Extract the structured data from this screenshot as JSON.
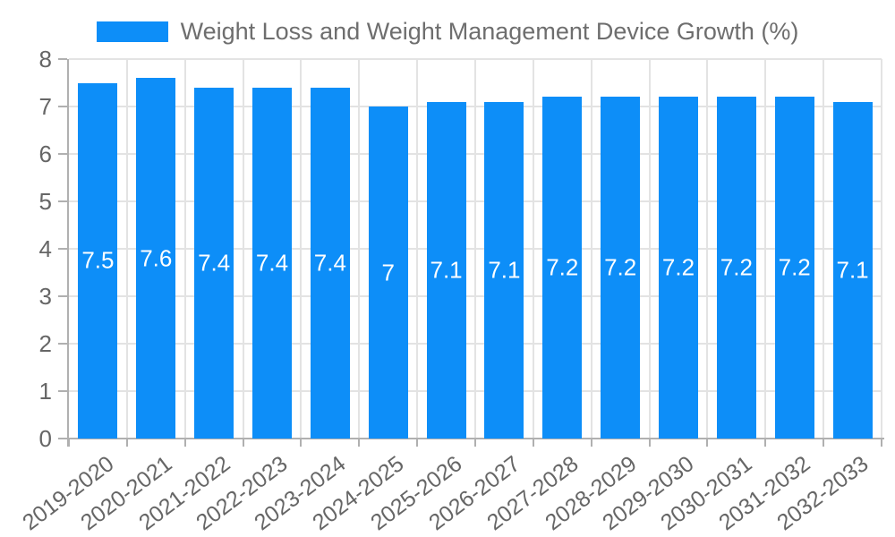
{
  "page": {
    "background": "#ffffff"
  },
  "chart_data": {
    "type": "bar",
    "title": "Weight Loss and Weight Management Device Growth (%)",
    "categories": [
      "2019-2020",
      "2020-2021",
      "2021-2022",
      "2022-2023",
      "2023-2024",
      "2024-2025",
      "2025-2026",
      "2026-2027",
      "2027-2028",
      "2028-2029",
      "2029-2030",
      "2030-2031",
      "2031-2032",
      "2032-2033"
    ],
    "values": [
      7.5,
      7.6,
      7.4,
      7.4,
      7.4,
      7,
      7.1,
      7.1,
      7.2,
      7.2,
      7.2,
      7.2,
      7.2,
      7.1
    ],
    "bar_labels": [
      "7.5",
      "7.6",
      "7.4",
      "7.4",
      "7.4",
      "7",
      "7.1",
      "7.1",
      "7.2",
      "7.2",
      "7.2",
      "7.2",
      "7.2",
      "7.1"
    ],
    "xlabel": "",
    "ylabel": "",
    "ylim": [
      0,
      8
    ],
    "yticks": [
      0,
      1,
      2,
      3,
      4,
      5,
      6,
      7,
      8
    ],
    "grid": true,
    "legend_position": "top",
    "colors": {
      "bar": "#0d8ef8",
      "grid": "#e3e3e3",
      "axis": "#b0b0b0",
      "tick_text": "#666666",
      "legend_text": "#6e6e6e",
      "bar_label_text": "#ffffff"
    }
  }
}
